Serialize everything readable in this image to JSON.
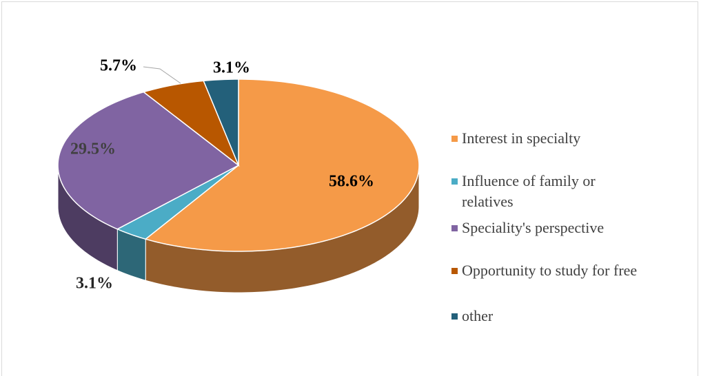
{
  "chart_data": {
    "type": "pie3d",
    "categories": [
      "Interest in specialty",
      "Influence of family or relatives",
      "Speciality's perspective",
      "Opportunity to study for free",
      "other"
    ],
    "values": [
      58.6,
      3.1,
      29.5,
      5.7,
      3.1
    ],
    "value_labels": [
      "58.6%",
      "3.1%",
      "29.5%",
      "5.7%",
      "3.1%"
    ],
    "colors": [
      "#f59a48",
      "#4bacc6",
      "#8064a2",
      "#b85700",
      "#23607a"
    ],
    "legend": "right"
  }
}
